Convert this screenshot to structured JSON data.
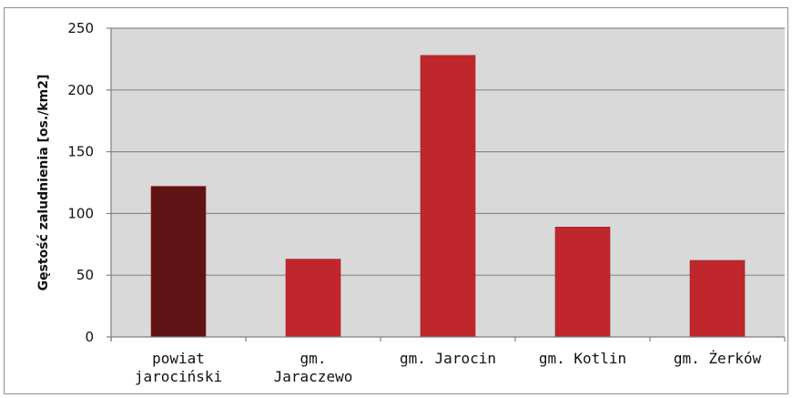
{
  "chart_data": {
    "type": "bar",
    "categories": [
      [
        "powiat",
        "jarociński"
      ],
      [
        "gm.",
        "Jaraczewo"
      ],
      [
        "gm. Jarocin"
      ],
      [
        "gm. Kotlin"
      ],
      [
        "gm. Żerków"
      ]
    ],
    "values": [
      122,
      63,
      228,
      89,
      62
    ],
    "ylabel": "Gęstość zaludnienia [os./km2]",
    "ylim": [
      0,
      250
    ],
    "yticks": [
      0,
      50,
      100,
      150,
      200,
      250
    ],
    "grid": true,
    "colors": {
      "bars": [
        "#5e1414",
        "#c0272d",
        "#c0272d",
        "#c0272d",
        "#c0272d"
      ],
      "bar_edge": "#9e1e22",
      "plot_bg": "#d9d9d9",
      "gridline": "#8a8a8a",
      "axis": "#7f7f7f"
    }
  }
}
